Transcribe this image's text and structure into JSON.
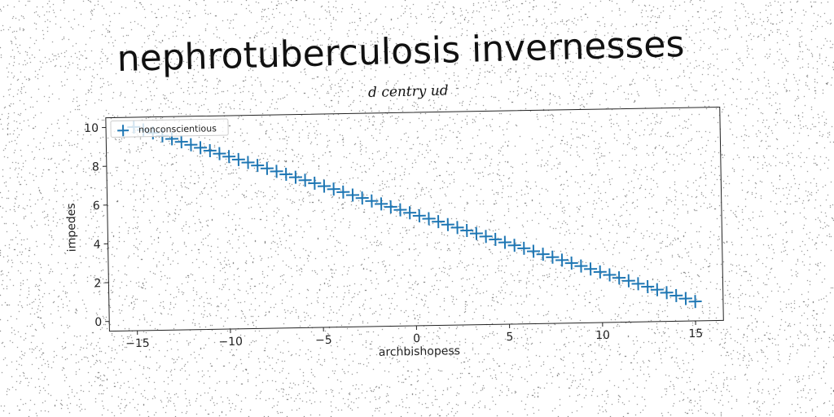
{
  "chart_data": {
    "type": "scatter",
    "title": "nephrotuberculosis invernesses",
    "subtitle": "d centry ud",
    "xlabel": "archbishopess",
    "ylabel": "impedes",
    "xlim": [
      -16.5,
      16.5
    ],
    "ylim": [
      -0.5,
      10.5
    ],
    "x_ticks": [
      -15,
      -10,
      -5,
      0,
      5,
      10,
      15
    ],
    "y_ticks": [
      0,
      2,
      4,
      6,
      8,
      10
    ],
    "legend_position": "upper-left",
    "grid": false,
    "marker": "plus",
    "color": "#1f77b4",
    "series": [
      {
        "name": "nonconscientious",
        "x_start": -15,
        "x_end": 15,
        "y_start": 10,
        "y_end": 0.5,
        "points": 60
      }
    ]
  }
}
